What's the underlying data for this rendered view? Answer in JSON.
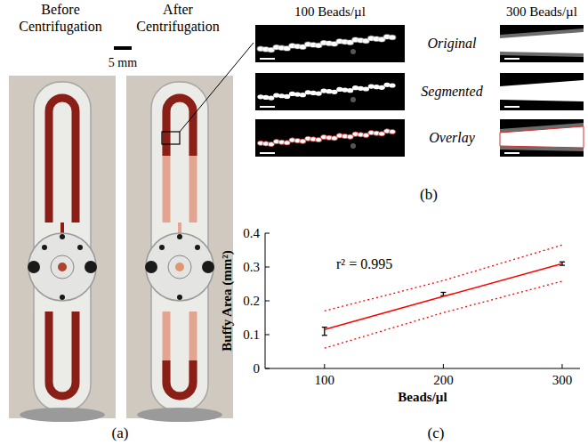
{
  "panel_a": {
    "panel_label": "(a)",
    "before_title": "Before Centrifugation",
    "after_title": "After Centrifugation",
    "scale_bar": "5 mm"
  },
  "panel_b": {
    "panel_label": "(b)",
    "columns": [
      "100 Beads/µl",
      "300 Beads/µl"
    ],
    "rows": [
      "Original",
      "Segmented",
      "Overlay"
    ]
  },
  "chart_data": {
    "type": "scatter",
    "panel_label": "(c)",
    "annotation": "r² = 0.995",
    "x_label": "Beads/µl",
    "y_label": "Buffy Area (mm²)",
    "x": [
      100,
      200,
      300
    ],
    "xlim": [
      50,
      315
    ],
    "xticks": [
      100,
      200,
      300
    ],
    "ylim": [
      0,
      0.4
    ],
    "yticks": [
      0,
      0.1,
      0.2,
      0.3,
      0.4
    ],
    "grid": false,
    "series": [
      {
        "type": "scatter",
        "marker": "errorbar",
        "color": "#000000",
        "values": [
          0.11,
          0.22,
          0.31
        ],
        "errors": [
          0.012,
          0.005,
          0.005
        ]
      },
      {
        "type": "line",
        "line_style": "solid",
        "color": "#ff0000",
        "values": [
          0.115,
          0.213,
          0.31
        ]
      },
      {
        "type": "line",
        "line_style": "dotted",
        "color": "#ff0000",
        "values": [
          0.06,
          0.165,
          0.258
        ]
      },
      {
        "type": "line",
        "line_style": "dotted",
        "color": "#ff0000",
        "values": [
          0.17,
          0.26,
          0.365
        ]
      }
    ]
  }
}
